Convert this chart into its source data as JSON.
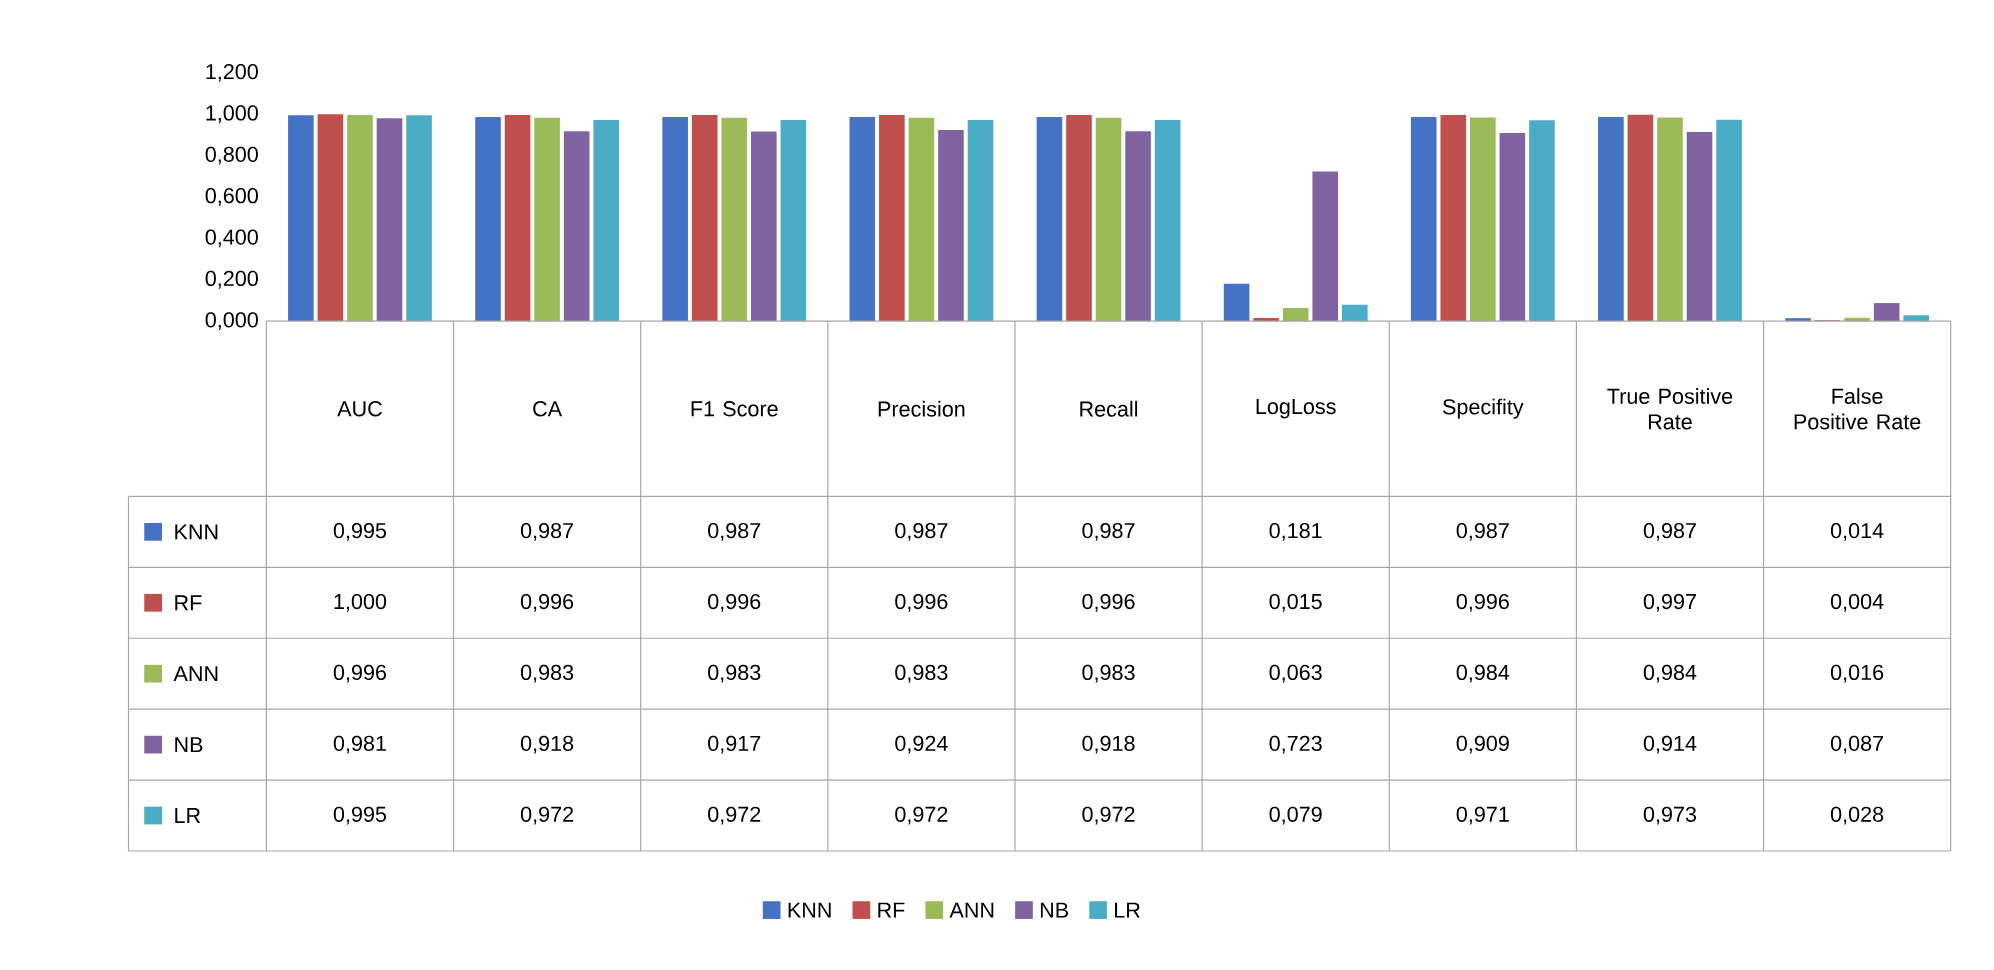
{
  "chart_data": {
    "type": "bar",
    "categories": [
      "AUC",
      "CA",
      "F1 Score",
      "Precision",
      "Recall",
      "LogLoss",
      "Specifity",
      "True Positive Rate",
      "False Positive Rate"
    ],
    "series": [
      {
        "name": "KNN",
        "color": "#4472c4",
        "values": [
          0.995,
          0.987,
          0.987,
          0.987,
          0.987,
          0.181,
          0.987,
          0.987,
          0.014
        ],
        "value_labels": [
          "0,995",
          "0,987",
          "0,987",
          "0,987",
          "0,987",
          "0,181",
          "0,987",
          "0,987",
          "0,014"
        ]
      },
      {
        "name": "RF",
        "color": "#c0504d",
        "values": [
          1.0,
          0.996,
          0.996,
          0.996,
          0.996,
          0.015,
          0.996,
          0.997,
          0.004
        ],
        "value_labels": [
          "1,000",
          "0,996",
          "0,996",
          "0,996",
          "0,996",
          "0,015",
          "0,996",
          "0,997",
          "0,004"
        ]
      },
      {
        "name": "ANN",
        "color": "#9bbb59",
        "values": [
          0.996,
          0.983,
          0.983,
          0.983,
          0.983,
          0.063,
          0.984,
          0.984,
          0.016
        ],
        "value_labels": [
          "0,996",
          "0,983",
          "0,983",
          "0,983",
          "0,983",
          "0,063",
          "0,984",
          "0,984",
          "0,016"
        ]
      },
      {
        "name": "NB",
        "color": "#8064a2",
        "values": [
          0.981,
          0.918,
          0.917,
          0.924,
          0.918,
          0.723,
          0.909,
          0.914,
          0.087
        ],
        "value_labels": [
          "0,981",
          "0,918",
          "0,917",
          "0,924",
          "0,918",
          "0,723",
          "0,909",
          "0,914",
          "0,087"
        ]
      },
      {
        "name": "LR",
        "color": "#4bacc6",
        "values": [
          0.995,
          0.972,
          0.972,
          0.972,
          0.972,
          0.079,
          0.971,
          0.973,
          0.028
        ],
        "value_labels": [
          "0,995",
          "0,972",
          "0,972",
          "0,972",
          "0,972",
          "0,079",
          "0,971",
          "0,973",
          "0,028"
        ]
      }
    ],
    "ylim": [
      0,
      1.2
    ],
    "yticks": [
      {
        "value": 0,
        "label": "0,000"
      },
      {
        "value": 0.2,
        "label": "0,200"
      },
      {
        "value": 0.4,
        "label": "0,400"
      },
      {
        "value": 0.6,
        "label": "0,600"
      },
      {
        "value": 0.8,
        "label": "0,800"
      },
      {
        "value": 1.0,
        "label": "1,000"
      },
      {
        "value": 1.2,
        "label": "1,200"
      }
    ],
    "grid": false,
    "legend": "bottom"
  }
}
